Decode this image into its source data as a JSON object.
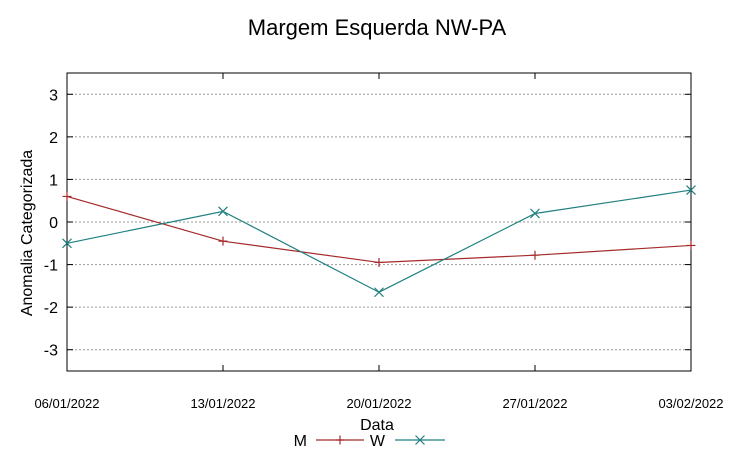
{
  "chart_data": {
    "type": "line",
    "title": "Margem Esquerda NW-PA",
    "xlabel": "Data",
    "ylabel": "Anomalia Categorizada",
    "categories": [
      "06/01/2022",
      "13/01/2022",
      "20/01/2022",
      "27/01/2022",
      "03/02/2022"
    ],
    "y_ticks": [
      3,
      2,
      1,
      0,
      -1,
      -2,
      -3
    ],
    "ylim": [
      -3.5,
      3.5
    ],
    "grid": true,
    "legend_position": "bottom-center",
    "series": [
      {
        "name": "M",
        "color": "#a52a2a",
        "marker": "plus",
        "values": [
          0.6,
          -0.45,
          -0.95,
          -0.78,
          -0.55
        ]
      },
      {
        "name": "W",
        "color": "#1f7f80",
        "marker": "x",
        "values": [
          -0.5,
          0.25,
          -1.65,
          0.2,
          0.75
        ]
      }
    ]
  }
}
